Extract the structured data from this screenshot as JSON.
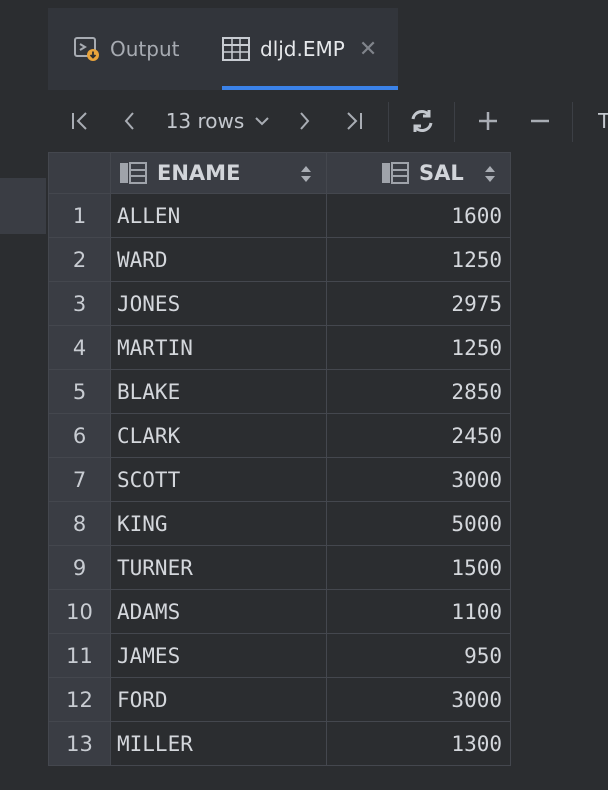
{
  "tabs": [
    {
      "label": "Output",
      "icon": "output-icon"
    },
    {
      "label": "dljd.EMP",
      "icon": "table-icon",
      "active": true
    }
  ],
  "toolbar": {
    "rows_label": "13 rows",
    "partial_text": "T"
  },
  "grid": {
    "columns": [
      "ENAME",
      "SAL"
    ],
    "rows": [
      {
        "num": "1",
        "ename": "ALLEN",
        "sal": "1600"
      },
      {
        "num": "2",
        "ename": "WARD",
        "sal": "1250"
      },
      {
        "num": "3",
        "ename": "JONES",
        "sal": "2975"
      },
      {
        "num": "4",
        "ename": "MARTIN",
        "sal": "1250"
      },
      {
        "num": "5",
        "ename": "BLAKE",
        "sal": "2850"
      },
      {
        "num": "6",
        "ename": "CLARK",
        "sal": "2450"
      },
      {
        "num": "7",
        "ename": "SCOTT",
        "sal": "3000"
      },
      {
        "num": "8",
        "ename": "KING",
        "sal": "5000"
      },
      {
        "num": "9",
        "ename": "TURNER",
        "sal": "1500"
      },
      {
        "num": "10",
        "ename": "ADAMS",
        "sal": "1100"
      },
      {
        "num": "11",
        "ename": "JAMES",
        "sal": "950"
      },
      {
        "num": "12",
        "ename": "FORD",
        "sal": "3000"
      },
      {
        "num": "13",
        "ename": "MILLER",
        "sal": "1300"
      }
    ]
  },
  "colors": {
    "accent": "#3b82e8",
    "background": "#2b2d30",
    "header_bg": "#3a3d44"
  }
}
